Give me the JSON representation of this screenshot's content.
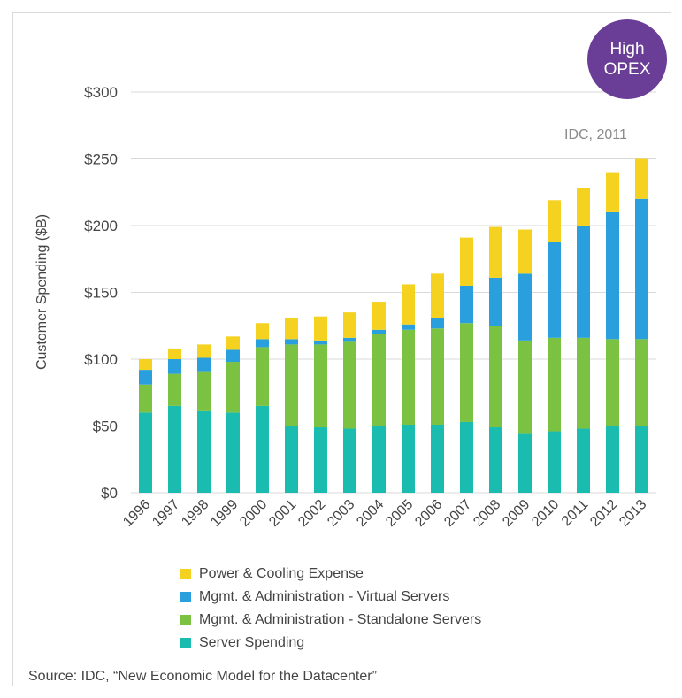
{
  "chart_data": {
    "type": "bar",
    "stacked": true,
    "title": "",
    "xlabel": "",
    "ylabel": "Customer Spending ($B)",
    "ylim": [
      0,
      300
    ],
    "yticks": [
      0,
      50,
      100,
      150,
      200,
      250,
      300
    ],
    "ytick_labels": [
      "$0",
      "$50",
      "$100",
      "$150",
      "$200",
      "$250",
      "$300"
    ],
    "grid": true,
    "legend_position": "bottom",
    "categories": [
      "1996",
      "1997",
      "1998",
      "1999",
      "2000",
      "2001",
      "2002",
      "2003",
      "2004",
      "2005",
      "2006",
      "2007",
      "2008",
      "2009",
      "2010",
      "2011",
      "2012",
      "2013"
    ],
    "series": [
      {
        "name": "Server Spending",
        "color": "#1bbcb0",
        "values": [
          60,
          65,
          61,
          60,
          65,
          50,
          49,
          48,
          50,
          51,
          51,
          53,
          49,
          44,
          46,
          48,
          50,
          50
        ]
      },
      {
        "name": "Mgmt. & Administration - Standalone Servers",
        "color": "#7cc242",
        "values": [
          21,
          24,
          30,
          38,
          44,
          61,
          62,
          65,
          69,
          71,
          72,
          74,
          76,
          70,
          70,
          68,
          65,
          65
        ]
      },
      {
        "name": "Mgmt. & Administration - Virtual Servers",
        "color": "#2a9fde",
        "values": [
          11,
          11,
          10,
          9,
          6,
          4,
          3,
          3,
          3,
          4,
          8,
          28,
          36,
          50,
          72,
          84,
          95,
          105
        ]
      },
      {
        "name": "Power & Cooling Expense",
        "color": "#f5d21f",
        "values": [
          8,
          8,
          10,
          10,
          12,
          16,
          18,
          19,
          21,
          30,
          33,
          36,
          38,
          33,
          31,
          28,
          30,
          30
        ]
      }
    ],
    "annotations": [
      "IDC, 2011"
    ]
  },
  "badge": {
    "text": "High\nOPEX"
  },
  "annotation": "IDC, 2011",
  "legend_order": [
    3,
    2,
    1,
    0
  ],
  "source": "Source: IDC, “New Economic Model for the Datacenter”",
  "colors": {
    "grid": "#d9d9d9",
    "axis_text": "#444444",
    "badge": "#6a3e97"
  }
}
